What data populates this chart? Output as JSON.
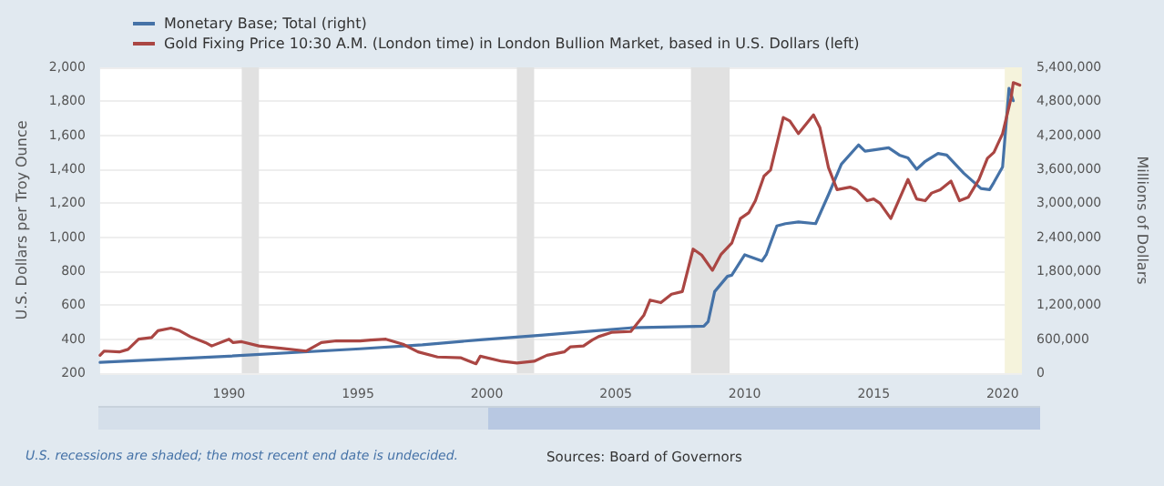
{
  "chart_data": {
    "type": "line",
    "legend": "top left",
    "ylabel": "U.S. Dollars per Troy Ounce",
    "y2label": "Millions of Dollars",
    "annotations": [
      "U.S. recessions are shaded; the most recent end date is undecided.",
      "Sources: Board of Governors"
    ],
    "xlim": [
      "1985-01",
      "2020-10"
    ],
    "xticks": [
      "1990",
      "1995",
      "2000",
      "2005",
      "2010",
      "2015",
      "2020"
    ],
    "ylim": [
      200,
      2000
    ],
    "yticks": [
      200,
      400,
      600,
      800,
      {
        "value": 1000,
        "label": "1,000"
      },
      {
        "value": 1200,
        "label": "1,200"
      },
      {
        "value": 1400,
        "label": "1,400"
      },
      {
        "value": 1600,
        "label": "1,600"
      },
      {
        "value": 1800,
        "label": "1,800"
      },
      {
        "value": 2000,
        "label": "2,000"
      }
    ],
    "y2lim": [
      0,
      5400000
    ],
    "y2ticks": [
      0,
      {
        "value": 600000,
        "label": "600,000"
      },
      {
        "value": 1200000,
        "label": "1,200,000"
      },
      {
        "value": 1800000,
        "label": "1,800,000"
      },
      {
        "value": 2400000,
        "label": "2,400,000"
      },
      {
        "value": 3000000,
        "label": "3,000,000"
      },
      {
        "value": 3600000,
        "label": "3,600,000"
      },
      {
        "value": 4200000,
        "label": "4,200,000"
      },
      {
        "value": 4800000,
        "label": "4,800,000"
      },
      {
        "value": 5400000,
        "label": "5,400,000"
      }
    ],
    "grid": "y",
    "marker": "none",
    "line_style": "solid",
    "bands": [
      {
        "axis": "x",
        "from": "1990-07",
        "to": "1991-03",
        "color": "#e1e1e1"
      },
      {
        "axis": "x",
        "from": "2001-03",
        "to": "2001-11",
        "color": "#e1e1e1"
      },
      {
        "axis": "x",
        "from": "2007-12",
        "to": "2009-06",
        "color": "#e1e1e1"
      },
      {
        "axis": "x",
        "from": "2020-02",
        "to": "2020-10",
        "color": "#f5f3dc"
      }
    ],
    "series": [
      {
        "name": "Monetary Base; Total (right)",
        "color": "#4572a7",
        "axis": "y2",
        "x": [
          "1985-01",
          "1990-01",
          "1995-02",
          "1997-07",
          "1999-10",
          "2002-02",
          "2004-04",
          "2005-08",
          "2008-06",
          "2008-08",
          "2008-11",
          "2009-05",
          "2009-07",
          "2010-01",
          "2010-09",
          "2010-11",
          "2011-04",
          "2011-08",
          "2012-02",
          "2012-10",
          "2013-04",
          "2013-10",
          "2014-06",
          "2014-09",
          "2015-08",
          "2016-01",
          "2016-05",
          "2016-09",
          "2017-01",
          "2017-07",
          "2017-11",
          "2018-07",
          "2019-03",
          "2019-07",
          "2019-09",
          "2020-01",
          "2020-04",
          "2020-05",
          "2020-06"
        ],
        "values": [
          190000,
          300000,
          430000,
          500000,
          590000,
          670000,
          750000,
          800000,
          830000,
          910000,
          1440000,
          1710000,
          1730000,
          2090000,
          1980000,
          2090000,
          2600000,
          2640000,
          2670000,
          2640000,
          3150000,
          3690000,
          4030000,
          3920000,
          3980000,
          3850000,
          3800000,
          3600000,
          3740000,
          3880000,
          3850000,
          3530000,
          3260000,
          3240000,
          3370000,
          3640000,
          5030000,
          4920000,
          4810000
        ]
      },
      {
        "name": "Gold Fixing Price 10:30 A.M. (London time) in London Bullion Market, based in U.S. Dollars (left)",
        "color": "#aa4643",
        "x": [
          "1985-01",
          "1985-03",
          "1985-10",
          "1986-02",
          "1986-07",
          "1987-01",
          "1987-04",
          "1987-10",
          "1988-02",
          "1988-07",
          "1989-02",
          "1989-05",
          "1990-01",
          "1990-03",
          "1990-07",
          "1991-03",
          "1992-02",
          "1993-01",
          "1993-08",
          "1994-03",
          "1995-02",
          "1995-07",
          "1996-02",
          "1996-10",
          "1997-05",
          "1998-02",
          "1999-01",
          "1999-08",
          "1999-10",
          "2000-08",
          "2001-03",
          "2001-11",
          "2002-05",
          "2003-01",
          "2003-04",
          "2003-10",
          "2004-02",
          "2004-05",
          "2004-11",
          "2005-08",
          "2006-02",
          "2006-05",
          "2006-10",
          "2007-03",
          "2007-08",
          "2008-01",
          "2008-05",
          "2008-10",
          "2009-02",
          "2009-07",
          "2009-11",
          "2010-03",
          "2010-06",
          "2010-10",
          "2011-01",
          "2011-07",
          "2011-10",
          "2012-02",
          "2012-09",
          "2012-12",
          "2013-04",
          "2013-08",
          "2014-02",
          "2014-05",
          "2014-10",
          "2015-01",
          "2015-04",
          "2015-09",
          "2016-05",
          "2016-09",
          "2017-01",
          "2017-04",
          "2017-08",
          "2018-01",
          "2018-05",
          "2018-09",
          "2019-02",
          "2019-06",
          "2019-09",
          "2020-01",
          "2020-05",
          "2020-06",
          "2020-09"
        ],
        "values": [
          305,
          330,
          325,
          340,
          400,
          410,
          450,
          465,
          450,
          415,
          380,
          360,
          400,
          380,
          385,
          360,
          345,
          330,
          380,
          390,
          390,
          395,
          400,
          370,
          325,
          295,
          290,
          255,
          300,
          270,
          260,
          270,
          305,
          325,
          355,
          360,
          395,
          415,
          440,
          445,
          540,
          630,
          615,
          665,
          680,
          930,
          895,
          805,
          900,
          965,
          1110,
          1145,
          1215,
          1360,
          1395,
          1705,
          1685,
          1610,
          1720,
          1645,
          1410,
          1280,
          1295,
          1280,
          1215,
          1225,
          1200,
          1110,
          1340,
          1225,
          1215,
          1260,
          1280,
          1330,
          1215,
          1235,
          1340,
          1465,
          1500,
          1610,
          1820,
          1910,
          1895
        ]
      }
    ]
  }
}
